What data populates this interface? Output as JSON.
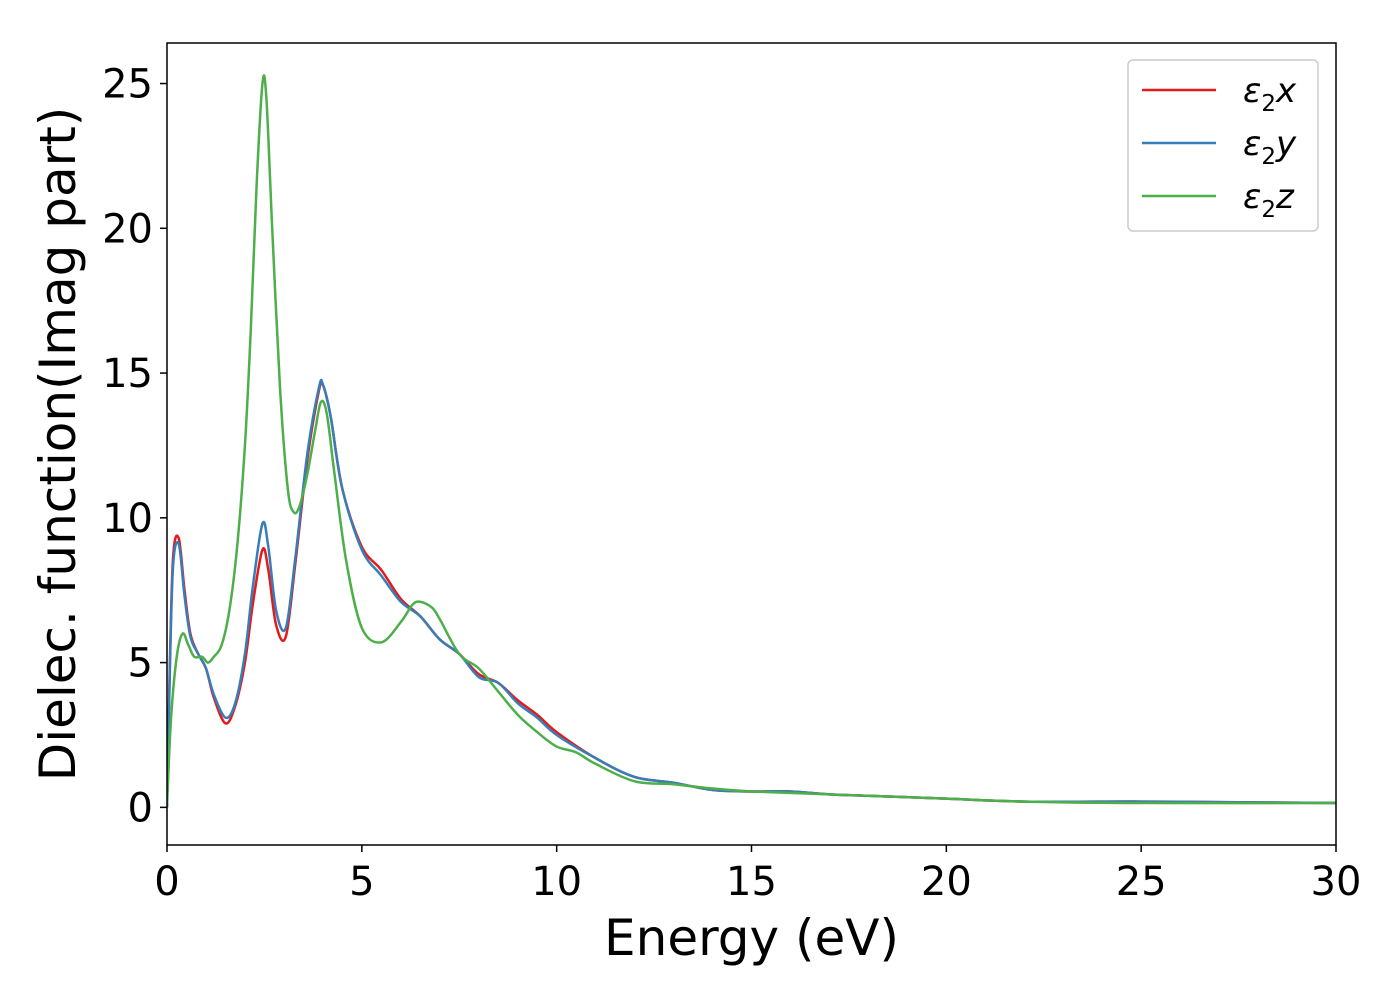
{
  "chart_data": {
    "type": "line",
    "xlabel": "Energy (eV)",
    "ylabel": "Dielec. function(Imag part)",
    "xlim": [
      0,
      30
    ],
    "ylim": [
      -1.3,
      26.4
    ],
    "xticks": [
      0,
      5,
      10,
      15,
      20,
      25,
      30
    ],
    "yticks": [
      0,
      5,
      10,
      15,
      20,
      25
    ],
    "grid": false,
    "legend_position": "top-right",
    "series": [
      {
        "name": "ε2x",
        "legend": {
          "base": "ε",
          "sub": "2",
          "axis": "x"
        },
        "color": "#e41a1c",
        "x": [
          0,
          0.05,
          0.15,
          0.3,
          0.45,
          0.6,
          0.8,
          1.0,
          1.2,
          1.5,
          1.75,
          2.0,
          2.2,
          2.45,
          2.6,
          2.8,
          3.05,
          3.3,
          3.6,
          3.9,
          4.0,
          4.2,
          4.5,
          5.0,
          5.5,
          6.0,
          6.5,
          7.0,
          7.5,
          8.0,
          8.5,
          9.0,
          9.5,
          10.0,
          11.0,
          12.0,
          13.0,
          14.0,
          15.0,
          16.0,
          17.0,
          18.0,
          20.0,
          22.0,
          25.0,
          27.0,
          30.0
        ],
        "values": [
          0,
          3.5,
          8.5,
          9.3,
          7.5,
          6.0,
          5.3,
          4.8,
          3.8,
          2.9,
          3.5,
          5.0,
          7.0,
          8.9,
          8.2,
          6.3,
          5.9,
          8.5,
          12.0,
          14.4,
          14.6,
          13.5,
          11.0,
          9.0,
          8.2,
          7.2,
          6.6,
          5.8,
          5.3,
          4.6,
          4.3,
          3.7,
          3.2,
          2.6,
          1.7,
          1.05,
          0.85,
          0.6,
          0.55,
          0.55,
          0.45,
          0.4,
          0.3,
          0.2,
          0.2,
          0.18,
          0.15
        ]
      },
      {
        "name": "ε2y",
        "legend": {
          "base": "ε",
          "sub": "2",
          "axis": "y"
        },
        "color": "#377eb8",
        "x": [
          0,
          0.05,
          0.15,
          0.3,
          0.45,
          0.6,
          0.8,
          1.0,
          1.2,
          1.5,
          1.75,
          2.0,
          2.2,
          2.45,
          2.6,
          2.8,
          3.05,
          3.3,
          3.6,
          3.9,
          4.0,
          4.2,
          4.5,
          5.0,
          5.5,
          6.0,
          6.5,
          7.0,
          7.5,
          8.0,
          8.5,
          9.0,
          9.5,
          10.0,
          11.0,
          12.0,
          13.0,
          14.0,
          15.0,
          16.0,
          17.0,
          18.0,
          20.0,
          22.0,
          25.0,
          27.0,
          30.0
        ],
        "values": [
          0,
          3.3,
          8.2,
          9.1,
          7.3,
          5.9,
          5.3,
          4.8,
          3.9,
          3.1,
          3.6,
          5.3,
          7.6,
          9.8,
          9.0,
          6.8,
          6.2,
          8.7,
          12.2,
          14.5,
          14.6,
          13.5,
          11.0,
          8.9,
          8.0,
          7.1,
          6.6,
          5.8,
          5.3,
          4.5,
          4.3,
          3.6,
          3.1,
          2.5,
          1.7,
          1.05,
          0.85,
          0.6,
          0.55,
          0.55,
          0.45,
          0.4,
          0.3,
          0.2,
          0.2,
          0.18,
          0.15
        ]
      },
      {
        "name": "ε2z",
        "legend": {
          "base": "ε",
          "sub": "2",
          "axis": "z"
        },
        "color": "#4daf4a",
        "x": [
          0,
          0.1,
          0.25,
          0.4,
          0.55,
          0.7,
          0.9,
          1.05,
          1.2,
          1.4,
          1.6,
          1.8,
          2.0,
          2.15,
          2.3,
          2.45,
          2.55,
          2.7,
          2.9,
          3.1,
          3.25,
          3.4,
          3.6,
          3.8,
          3.95,
          4.1,
          4.3,
          4.6,
          5.0,
          5.5,
          6.0,
          6.3,
          6.5,
          6.8,
          7.0,
          7.5,
          8.0,
          8.5,
          9.0,
          9.5,
          10.0,
          10.5,
          11.0,
          12.0,
          13.0,
          14.0,
          15.0,
          17.0,
          20.0,
          22.0,
          25.0,
          30.0
        ],
        "values": [
          0,
          3.0,
          5.2,
          6.0,
          5.6,
          5.2,
          5.2,
          5.0,
          5.2,
          5.6,
          6.8,
          9.0,
          12.5,
          16.5,
          21.5,
          25.0,
          24.5,
          20.0,
          14.5,
          11.0,
          10.2,
          10.4,
          11.5,
          13.0,
          14.0,
          13.6,
          11.5,
          8.5,
          6.2,
          5.7,
          6.4,
          7.0,
          7.1,
          6.9,
          6.5,
          5.3,
          4.8,
          4.0,
          3.2,
          2.6,
          2.1,
          1.9,
          1.5,
          0.9,
          0.8,
          0.65,
          0.55,
          0.45,
          0.3,
          0.2,
          0.15,
          0.15
        ]
      }
    ]
  }
}
